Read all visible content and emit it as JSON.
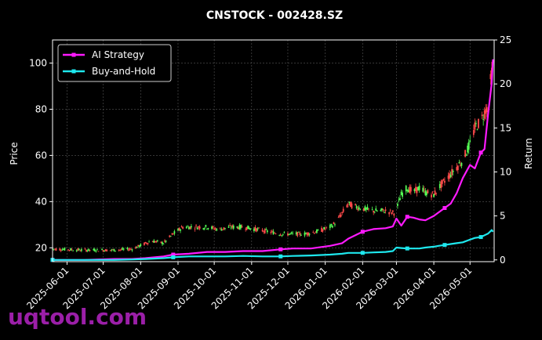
{
  "watermark": "uqtool.com",
  "colors": {
    "background": "#000000",
    "ai_strategy": "#ff1aff",
    "buy_and_hold": "#1ee8ee",
    "candle_up": "#55ff55",
    "candle_down": "#ff4a4a",
    "grid": "#555555"
  },
  "chart_data": {
    "type": "line",
    "title": "CNSTOCK - 002428.SZ",
    "ylabel": "Price",
    "ylabel_right": "Return",
    "ylim": [
      14,
      110
    ],
    "ylim_right": [
      -0.2,
      25
    ],
    "yticks": [
      20,
      40,
      60,
      80,
      100
    ],
    "yticks_right": [
      0,
      5,
      10,
      15,
      20,
      25
    ],
    "xlim": [
      "2025-05-20",
      "2026-05-21"
    ],
    "xticks": [
      "2025-06-01",
      "2025-07-01",
      "2025-08-01",
      "2025-09-01",
      "2025-10-01",
      "2025-11-01",
      "2025-12-01",
      "2026-01-01",
      "2026-02-01",
      "2026-03-01",
      "2026-04-01",
      "2026-05-01"
    ],
    "grid": true,
    "legend_position": "top-left",
    "price": {
      "name": "Price (candlestick)",
      "dates": [
        "2025-05-20",
        "2025-06-15",
        "2025-07-10",
        "2025-07-25",
        "2025-08-01",
        "2025-08-10",
        "2025-08-20",
        "2025-08-28",
        "2025-09-05",
        "2025-09-15",
        "2025-09-25",
        "2025-10-05",
        "2025-10-15",
        "2025-10-25",
        "2025-11-05",
        "2025-11-15",
        "2025-11-25",
        "2025-12-05",
        "2025-12-15",
        "2025-12-25",
        "2026-01-05",
        "2026-01-10",
        "2026-01-15",
        "2026-01-20",
        "2026-01-25",
        "2026-02-01",
        "2026-02-10",
        "2026-02-20",
        "2026-02-28",
        "2026-03-05",
        "2026-03-10",
        "2026-03-15",
        "2026-03-20",
        "2026-03-25",
        "2026-04-01",
        "2026-04-05",
        "2026-04-10",
        "2026-04-15",
        "2026-04-20",
        "2026-04-25",
        "2026-05-01",
        "2026-05-05",
        "2026-05-10",
        "2026-05-15",
        "2026-05-19"
      ],
      "values": [
        19.5,
        19,
        19,
        19.5,
        21,
        23,
        22,
        26,
        29,
        29,
        29,
        28,
        29,
        29,
        28,
        27,
        26,
        26,
        26,
        27,
        29,
        31,
        35,
        39,
        38,
        37,
        36,
        36,
        35,
        43,
        46,
        44,
        46,
        44,
        43,
        46,
        49,
        52,
        55,
        58,
        65,
        72,
        75,
        81,
        96
      ]
    },
    "series": [
      {
        "name": "AI Strategy",
        "dates": [
          "2025-05-20",
          "2025-06-15",
          "2025-07-10",
          "2025-07-25",
          "2025-08-05",
          "2025-08-20",
          "2025-08-28",
          "2025-09-10",
          "2025-09-25",
          "2025-10-10",
          "2025-10-25",
          "2025-11-10",
          "2025-11-25",
          "2025-12-05",
          "2025-12-20",
          "2026-01-05",
          "2026-01-15",
          "2026-01-20",
          "2026-02-01",
          "2026-02-10",
          "2026-02-20",
          "2026-02-26",
          "2026-03-01",
          "2026-03-05",
          "2026-03-10",
          "2026-03-15",
          "2026-03-20",
          "2026-03-25",
          "2026-04-01",
          "2026-04-05",
          "2026-04-10",
          "2026-04-15",
          "2026-04-20",
          "2026-04-25",
          "2026-05-01",
          "2026-05-05",
          "2026-05-10",
          "2026-05-13",
          "2026-05-16",
          "2026-05-19",
          "2026-05-20"
        ],
        "values": [
          0,
          0,
          0.1,
          0.1,
          0.2,
          0.4,
          0.6,
          0.7,
          0.9,
          0.9,
          1.0,
          1.0,
          1.2,
          1.3,
          1.3,
          1.6,
          1.9,
          2.4,
          3.2,
          3.5,
          3.6,
          3.8,
          4.7,
          3.9,
          4.9,
          4.8,
          4.6,
          4.5,
          5.0,
          5.4,
          5.9,
          6.4,
          7.6,
          9.3,
          10.8,
          10.4,
          12.2,
          12.6,
          16.6,
          20.1,
          22.8
        ]
      },
      {
        "name": "Buy-and-Hold",
        "dates": [
          "2025-05-20",
          "2025-06-15",
          "2025-07-10",
          "2025-07-25",
          "2025-08-05",
          "2025-08-20",
          "2025-08-28",
          "2025-09-10",
          "2025-09-25",
          "2025-10-10",
          "2025-10-25",
          "2025-11-10",
          "2025-11-25",
          "2025-12-05",
          "2025-12-20",
          "2026-01-05",
          "2026-01-15",
          "2026-01-20",
          "2026-02-01",
          "2026-02-10",
          "2026-02-20",
          "2026-02-26",
          "2026-03-01",
          "2026-03-05",
          "2026-03-10",
          "2026-03-15",
          "2026-03-20",
          "2026-03-25",
          "2026-04-01",
          "2026-04-05",
          "2026-04-10",
          "2026-04-15",
          "2026-04-20",
          "2026-04-25",
          "2026-05-01",
          "2026-05-05",
          "2026-05-10",
          "2026-05-13",
          "2026-05-16",
          "2026-05-19",
          "2026-05-20"
        ],
        "values": [
          0,
          0,
          0,
          0.05,
          0.1,
          0.2,
          0.3,
          0.4,
          0.4,
          0.4,
          0.45,
          0.4,
          0.4,
          0.45,
          0.5,
          0.6,
          0.7,
          0.8,
          0.8,
          0.85,
          0.9,
          1.0,
          1.4,
          1.35,
          1.3,
          1.3,
          1.3,
          1.4,
          1.5,
          1.6,
          1.7,
          1.8,
          1.9,
          2.0,
          2.3,
          2.5,
          2.6,
          2.8,
          3.0,
          3.4,
          3.2
        ]
      }
    ]
  }
}
